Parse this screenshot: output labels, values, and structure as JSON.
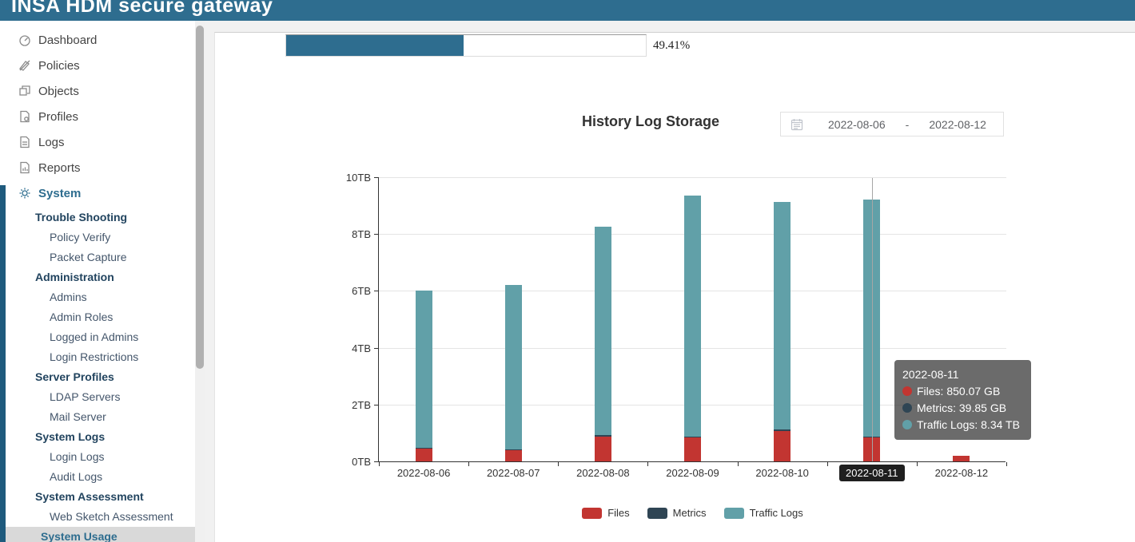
{
  "header": {
    "title": "INSA HDM secure gateway"
  },
  "sidebar": {
    "top_items": [
      {
        "label": "Dashboard",
        "icon": "dashboard-icon",
        "active": false
      },
      {
        "label": "Policies",
        "icon": "policies-icon",
        "active": false
      },
      {
        "label": "Objects",
        "icon": "objects-icon",
        "active": false
      },
      {
        "label": "Profiles",
        "icon": "profiles-icon",
        "active": false
      },
      {
        "label": "Logs",
        "icon": "logs-icon",
        "active": false
      },
      {
        "label": "Reports",
        "icon": "reports-icon",
        "active": false
      },
      {
        "label": "System",
        "icon": "system-icon",
        "active": true
      }
    ],
    "groups": [
      {
        "header": "Trouble Shooting",
        "active": false,
        "items": [
          "Policy Verify",
          "Packet Capture"
        ]
      },
      {
        "header": "Administration",
        "active": false,
        "items": [
          "Admins",
          "Admin Roles",
          "Logged in Admins",
          "Login Restrictions"
        ]
      },
      {
        "header": "Server Profiles",
        "active": false,
        "items": [
          "LDAP Servers",
          "Mail Server"
        ]
      },
      {
        "header": "System Logs",
        "active": false,
        "items": [
          "Login Logs",
          "Audit Logs"
        ]
      },
      {
        "header": "System Assessment",
        "active": false,
        "items": [
          "Web Sketch Assessment"
        ]
      },
      {
        "header": "System Usage",
        "active": true,
        "items": []
      }
    ]
  },
  "progress": {
    "percent": 49.41,
    "label": "49.41%"
  },
  "chart_header": {
    "title": "History Log Storage",
    "date_range": {
      "start": "2022-08-06",
      "separator": "-",
      "end": "2022-08-12"
    }
  },
  "chart_data": {
    "type": "bar",
    "stacked": true,
    "title": "History Log Storage",
    "categories": [
      "2022-08-06",
      "2022-08-07",
      "2022-08-08",
      "2022-08-09",
      "2022-08-10",
      "2022-08-11",
      "2022-08-12"
    ],
    "series": [
      {
        "name": "Files",
        "color": "#c23531",
        "unit": "TB",
        "values": [
          0.45,
          0.38,
          0.88,
          0.84,
          1.08,
          0.83,
          0.19
        ]
      },
      {
        "name": "Metrics",
        "color": "#2f4554",
        "unit": "TB",
        "values": [
          0.04,
          0.04,
          0.04,
          0.04,
          0.04,
          0.04,
          0.0
        ]
      },
      {
        "name": "Traffic Logs",
        "color": "#61a0a8",
        "unit": "TB",
        "values": [
          5.51,
          5.8,
          7.33,
          8.48,
          8.0,
          8.34,
          0.0
        ]
      }
    ],
    "totals_tb": [
      6.0,
      6.22,
      8.25,
      9.36,
      9.12,
      9.21,
      0.19
    ],
    "ylabel": "",
    "xlabel": "",
    "ylim": [
      0,
      10
    ],
    "yticks": [
      "0TB",
      "2TB",
      "4TB",
      "6TB",
      "8TB",
      "10TB"
    ],
    "grid": true,
    "legend_position": "bottom",
    "highlighted_category": "2022-08-11"
  },
  "tooltip": {
    "title": "2022-08-11",
    "rows": [
      {
        "label": "Files",
        "value": "850.07 GB",
        "color": "#c23531"
      },
      {
        "label": "Metrics",
        "value": "39.85 GB",
        "color": "#2f4554"
      },
      {
        "label": "Traffic Logs",
        "value": "8.34 TB",
        "color": "#61a0a8"
      }
    ]
  }
}
